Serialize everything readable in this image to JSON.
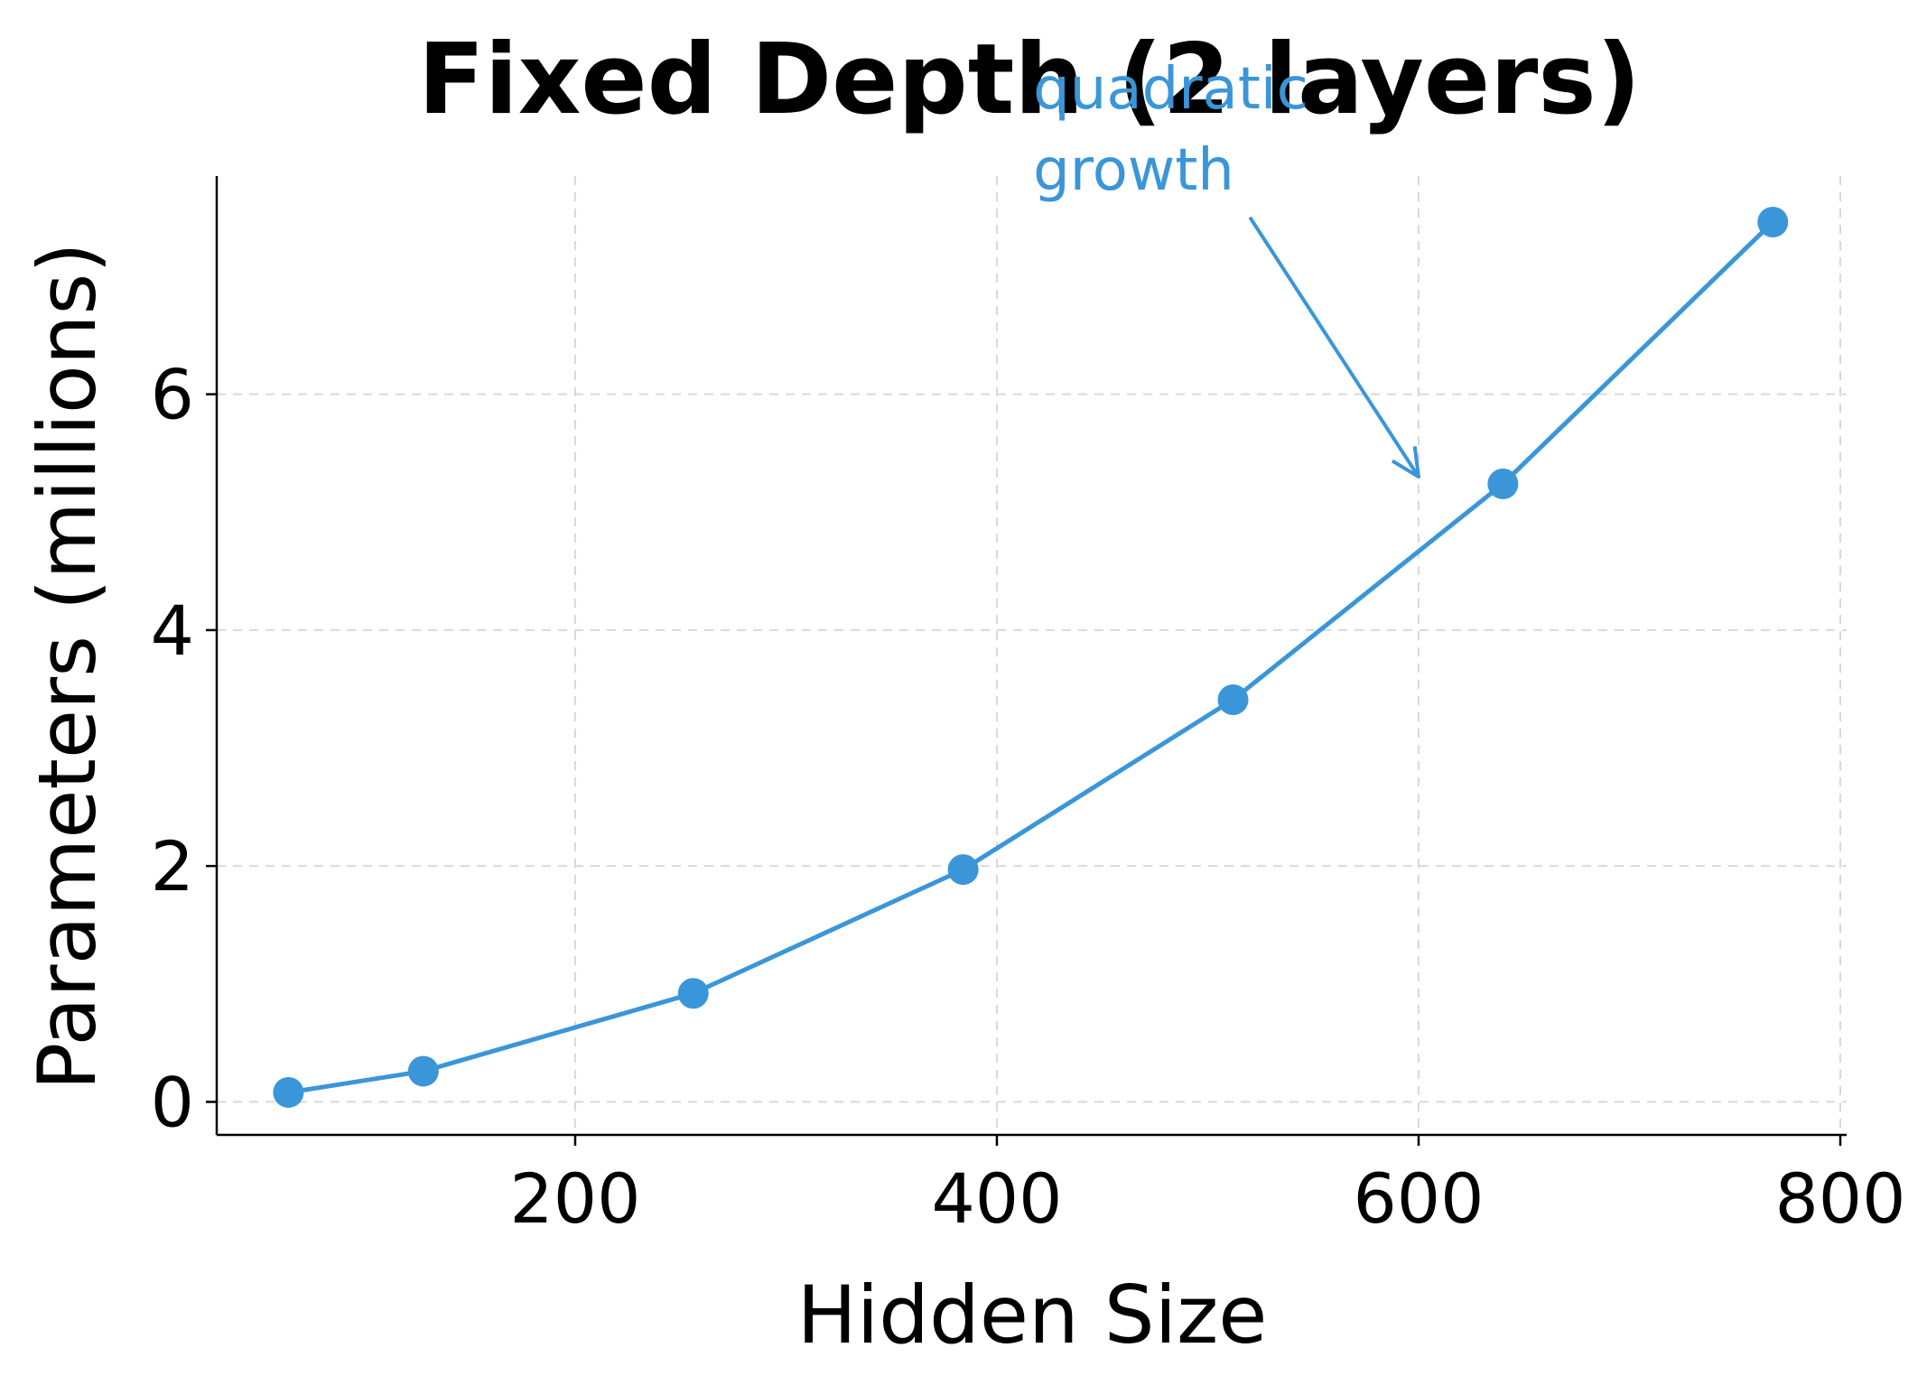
{
  "chart_data": {
    "type": "line",
    "title": "Fixed Depth (2 layers)",
    "xlabel": "Hidden Size",
    "ylabel": "Parameters (millions)",
    "xlim": [
      30,
      803
    ],
    "ylim": [
      -0.28,
      7.85
    ],
    "xticks": [
      200,
      400,
      600,
      800
    ],
    "yticks": [
      0,
      2,
      4,
      6
    ],
    "grid": true,
    "series": [
      {
        "x": [
          64,
          128,
          256,
          384,
          512,
          640,
          768
        ],
        "y": [
          0.08,
          0.26,
          0.92,
          1.97,
          3.41,
          5.24,
          7.46
        ]
      }
    ],
    "annotation": {
      "text_lines": [
        "quadratic",
        "growth"
      ],
      "arrow_target": [
        600,
        5.3
      ],
      "arrow_start": [
        520,
        7.5
      ]
    }
  },
  "colors": {
    "series": "#3a96d8",
    "annotation": "#3a96d8",
    "grid": "#d9d9d9",
    "axis": "#000000"
  }
}
